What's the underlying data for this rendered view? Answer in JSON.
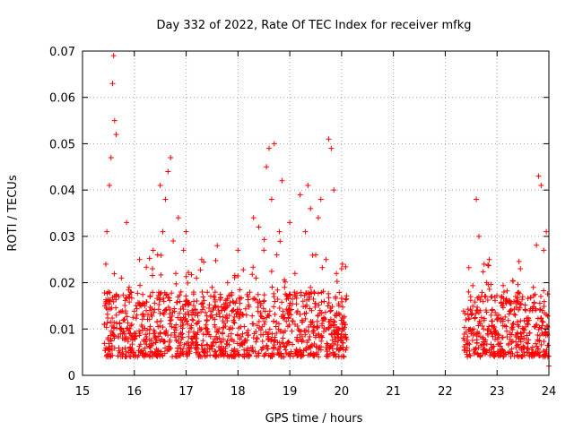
{
  "chart_data": {
    "type": "scatter",
    "title": "Day 332 of 2022, Rate Of TEC Index for receiver mfkg",
    "xlabel": "GPS time / hours",
    "ylabel": "ROTI / TECUs",
    "xlim": [
      15,
      24
    ],
    "ylim": [
      0,
      0.07
    ],
    "xticks": [
      15,
      16,
      17,
      18,
      19,
      20,
      21,
      22,
      23,
      24
    ],
    "xtick_labels": [
      "15",
      "16",
      "17",
      "18",
      "19",
      "20",
      "21",
      "22",
      "23",
      "24"
    ],
    "yticks": [
      0,
      0.01,
      0.02,
      0.03,
      0.04,
      0.05,
      0.06,
      0.07
    ],
    "ytick_labels": [
      "0",
      "0.01",
      "0.02",
      "0.03",
      "0.04",
      "0.05",
      "0.06",
      "0.07"
    ],
    "grid": true,
    "marker": "+",
    "color": "#ff0000",
    "series": [
      {
        "name": "ROTI",
        "x": [
          15.42,
          15.45,
          15.47,
          15.5,
          15.52,
          15.55,
          15.58,
          15.6,
          15.62,
          15.65,
          15.7,
          15.75,
          15.8,
          15.85,
          15.9,
          15.95,
          16.0,
          16.05,
          16.1,
          16.2,
          16.3,
          16.35,
          16.45,
          16.5,
          16.55,
          16.6,
          16.65,
          16.7,
          16.75,
          16.8,
          16.85,
          16.9,
          16.95,
          17.0,
          17.05,
          17.1,
          17.2,
          17.3,
          17.4,
          17.5,
          17.55,
          17.6,
          17.7,
          17.8,
          17.9,
          18.0,
          18.1,
          18.2,
          18.3,
          18.35,
          18.4,
          18.5,
          18.55,
          18.6,
          18.65,
          18.7,
          18.75,
          18.8,
          18.85,
          18.9,
          19.0,
          19.1,
          19.2,
          19.3,
          19.35,
          19.4,
          19.5,
          19.55,
          19.6,
          19.7,
          19.75,
          19.8,
          19.85,
          19.9,
          19.95,
          20.0,
          20.05,
          20.1,
          22.4,
          22.45,
          22.5,
          22.55,
          22.6,
          22.65,
          22.7,
          22.75,
          22.8,
          22.85,
          22.9,
          23.0,
          23.1,
          23.2,
          23.3,
          23.35,
          23.4,
          23.45,
          23.5,
          23.55,
          23.6,
          23.7,
          23.8,
          23.85,
          23.9,
          23.95,
          24.0
        ],
        "y": [
          0.011,
          0.024,
          0.031,
          0.018,
          0.041,
          0.047,
          0.063,
          0.069,
          0.055,
          0.052,
          0.017,
          0.021,
          0.012,
          0.033,
          0.019,
          0.011,
          0.009,
          0.013,
          0.025,
          0.015,
          0.01,
          0.023,
          0.026,
          0.041,
          0.031,
          0.038,
          0.044,
          0.047,
          0.029,
          0.022,
          0.034,
          0.018,
          0.027,
          0.031,
          0.013,
          0.008,
          0.021,
          0.025,
          0.012,
          0.019,
          0.015,
          0.028,
          0.009,
          0.02,
          0.016,
          0.027,
          0.013,
          0.017,
          0.034,
          0.021,
          0.032,
          0.027,
          0.045,
          0.049,
          0.038,
          0.05,
          0.026,
          0.031,
          0.042,
          0.019,
          0.033,
          0.022,
          0.039,
          0.031,
          0.041,
          0.036,
          0.026,
          0.034,
          0.038,
          0.025,
          0.051,
          0.049,
          0.04,
          0.022,
          0.015,
          0.023,
          0.011,
          0.006,
          0.012,
          0.018,
          0.009,
          0.01,
          0.038,
          0.03,
          0.017,
          0.024,
          0.02,
          0.025,
          0.014,
          0.012,
          0.015,
          0.016,
          0.011,
          0.013,
          0.009,
          0.023,
          0.008,
          0.014,
          0.011,
          0.019,
          0.043,
          0.041,
          0.027,
          0.031,
          0.002
        ]
      }
    ],
    "gap_hours": [
      20.1,
      22.35
    ]
  }
}
